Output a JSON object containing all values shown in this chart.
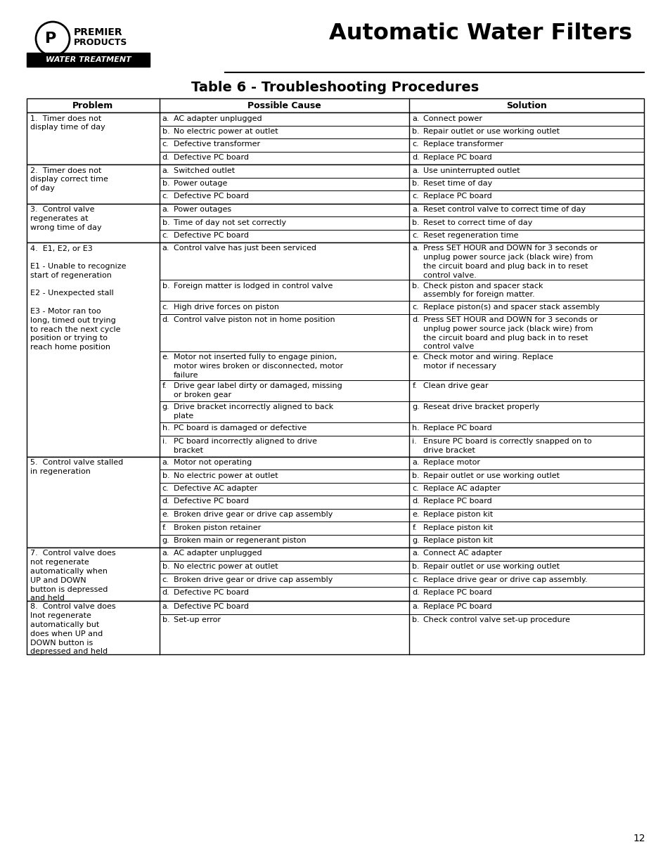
{
  "title": "Automatic Water Filters",
  "table_title": "Table 6 - Troubleshooting Procedures",
  "col_headers": [
    "Problem",
    "Possible Cause",
    "Solution"
  ],
  "page_number": "12",
  "brand_tag": "WATER TREATMENT",
  "rows": [
    {
      "problem": "1.  Timer does not\ndisplay time of day",
      "causes": [
        "AC adapter unplugged",
        "No electric power at outlet",
        "Defective transformer",
        "Defective PC board"
      ],
      "solutions": [
        "Connect power",
        "Repair outlet or use working outlet",
        "Replace transformer",
        "Replace PC board"
      ],
      "cause_lines": [
        1,
        1,
        1,
        1
      ],
      "solution_lines": [
        1,
        1,
        1,
        1
      ]
    },
    {
      "problem": "2.  Timer does not\ndisplay correct time\nof day",
      "causes": [
        "Switched outlet",
        "Power outage",
        "Defective PC board"
      ],
      "solutions": [
        "Use uninterrupted outlet",
        "Reset time of day",
        "Replace PC board"
      ],
      "cause_lines": [
        1,
        1,
        1
      ],
      "solution_lines": [
        1,
        1,
        1
      ]
    },
    {
      "problem": "3.  Control valve\nregenerates at\nwrong time of day",
      "causes": [
        "Power outages",
        "Time of day not set correctly",
        "Defective PC board"
      ],
      "solutions": [
        "Reset control valve to correct time of day",
        "Reset to correct time of day",
        "Reset regeneration time"
      ],
      "cause_lines": [
        1,
        1,
        1
      ],
      "solution_lines": [
        1,
        1,
        1
      ]
    },
    {
      "problem": "4.  E1, E2, or E3\n\nE1 - Unable to recognize\nstart of regeneration\n\nE2 - Unexpected stall\n\nE3 - Motor ran too\nlong, timed out trying\nto reach the next cycle\nposition or trying to\nreach home position",
      "causes": [
        "Control valve has just been serviced",
        "Foreign matter is lodged in control valve",
        "High drive forces on piston",
        "Control valve piston not in home position",
        "Motor not inserted fully to engage pinion,\nmotor wires broken or disconnected, motor\nfailure",
        "Drive gear label dirty or damaged, missing\nor broken gear",
        "Drive bracket incorrectly aligned to back\nplate",
        "PC board is damaged or defective",
        "PC board incorrectly aligned to drive\nbracket"
      ],
      "solutions": [
        "Press SET HOUR and DOWN for 3 seconds or\nunplug power source jack (black wire) from\nthe circuit board and plug back in to reset\ncontrol valve.",
        "Check piston and spacer stack\nassembly for foreign matter.",
        "Replace piston(s) and spacer stack assembly",
        "Press SET HOUR and DOWN for 3 seconds or\nunplug power source jack (black wire) from\nthe circuit board and plug back in to reset\ncontrol valve",
        "Check motor and wiring. Replace\nmotor if necessary",
        "Clean drive gear",
        "Reseat drive bracket properly",
        "Replace PC board",
        "Ensure PC board is correctly snapped on to\ndrive bracket"
      ],
      "cause_lines": [
        1,
        1,
        1,
        1,
        3,
        2,
        2,
        1,
        2
      ],
      "solution_lines": [
        4,
        2,
        1,
        4,
        2,
        1,
        1,
        1,
        2
      ]
    },
    {
      "problem": "5.  Control valve stalled\nin regeneration",
      "causes": [
        "Motor not operating",
        "No electric power at outlet",
        "Defective AC adapter",
        "Defective PC board",
        "Broken drive gear or drive cap assembly",
        "Broken piston retainer",
        "Broken main or regenerant piston"
      ],
      "solutions": [
        "Replace motor",
        "Repair outlet or use working outlet",
        "Replace AC adapter",
        "Replace PC board",
        "Replace piston kit",
        "Replace piston kit",
        "Replace piston kit"
      ],
      "cause_lines": [
        1,
        1,
        1,
        1,
        1,
        1,
        1
      ],
      "solution_lines": [
        1,
        1,
        1,
        1,
        1,
        1,
        1
      ]
    },
    {
      "problem": "7.  Control valve does\nnot regenerate\nautomatically when\nUP and DOWN\nbutton is depressed\nand held",
      "causes": [
        "AC adapter unplugged",
        "No electric power at outlet",
        "Broken drive gear or drive cap assembly",
        "Defective PC board"
      ],
      "solutions": [
        "Connect AC adapter",
        "Repair outlet or use working outlet",
        "Replace drive gear or drive cap assembly.",
        "Replace PC board"
      ],
      "cause_lines": [
        1,
        1,
        1,
        1
      ],
      "solution_lines": [
        1,
        1,
        1,
        1
      ]
    },
    {
      "problem": "8.  Control valve does\nlnot regenerate\nautomatically but\ndoes when UP and\nDOWN button is\ndepressed and held",
      "causes": [
        "Defective PC board",
        "Set-up error"
      ],
      "solutions": [
        "Replace PC board",
        "Check control valve set-up procedure"
      ],
      "cause_lines": [
        1,
        1
      ],
      "solution_lines": [
        1,
        1
      ]
    }
  ]
}
